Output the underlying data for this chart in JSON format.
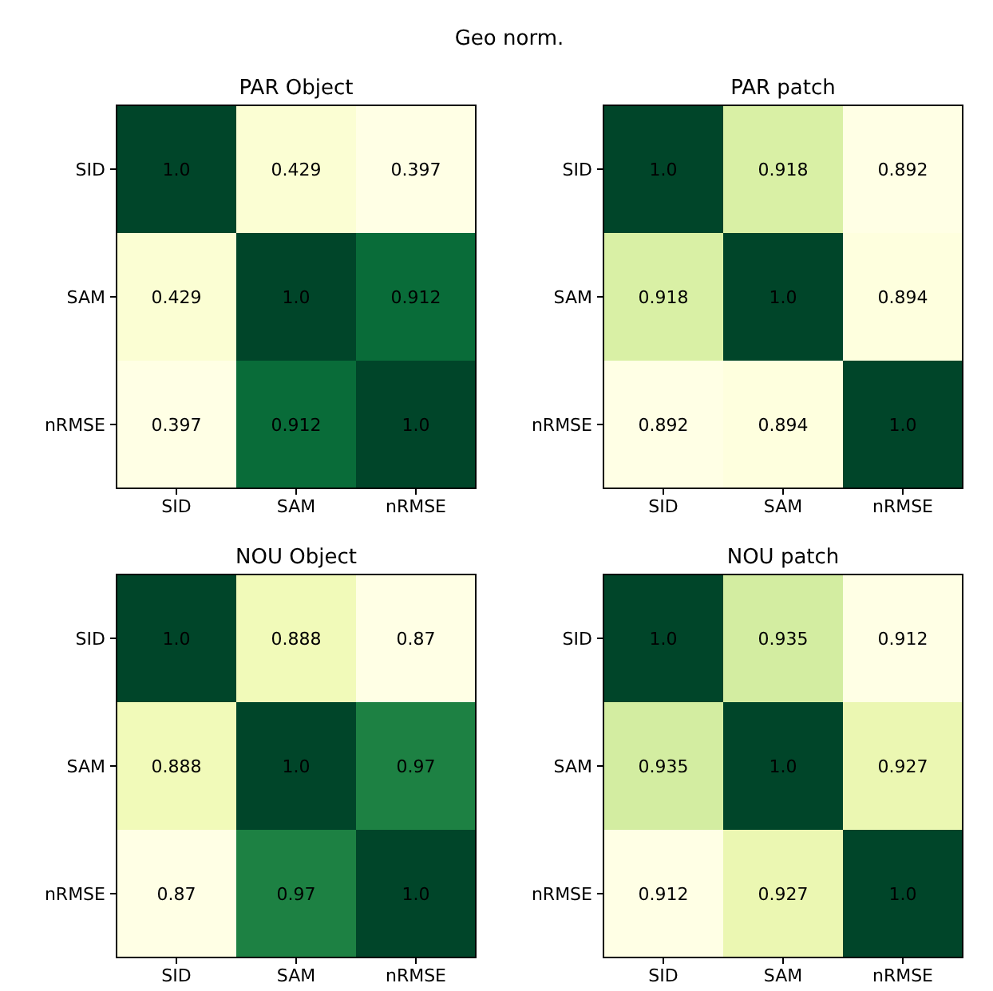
{
  "chart_data": [
    {
      "type": "heatmap",
      "title": "PAR Object",
      "subtitle": "Geo norm.",
      "categories": [
        "SID",
        "SAM",
        "nRMSE"
      ],
      "y_categories": [
        "SID",
        "SAM",
        "nRMSE"
      ],
      "cells": [
        [
          1.0,
          0.429,
          0.397
        ],
        [
          0.429,
          1.0,
          0.912
        ],
        [
          0.397,
          0.912,
          1.0
        ]
      ],
      "cell_labels": [
        [
          "1.0",
          "0.429",
          "0.397"
        ],
        [
          "0.429",
          "1.0",
          "0.912"
        ],
        [
          "0.397",
          "0.912",
          "1.0"
        ]
      ]
    },
    {
      "type": "heatmap",
      "title": "PAR patch",
      "categories": [
        "SID",
        "SAM",
        "nRMSE"
      ],
      "y_categories": [
        "SID",
        "SAM",
        "nRMSE"
      ],
      "cells": [
        [
          1.0,
          0.918,
          0.892
        ],
        [
          0.918,
          1.0,
          0.894
        ],
        [
          0.892,
          0.894,
          1.0
        ]
      ],
      "cell_labels": [
        [
          "1.0",
          "0.918",
          "0.892"
        ],
        [
          "0.918",
          "1.0",
          "0.894"
        ],
        [
          "0.892",
          "0.894",
          "1.0"
        ]
      ]
    },
    {
      "type": "heatmap",
      "title": "NOU Object",
      "categories": [
        "SID",
        "SAM",
        "nRMSE"
      ],
      "y_categories": [
        "SID",
        "SAM",
        "nRMSE"
      ],
      "cells": [
        [
          1.0,
          0.888,
          0.87
        ],
        [
          0.888,
          1.0,
          0.97
        ],
        [
          0.87,
          0.97,
          1.0
        ]
      ],
      "cell_labels": [
        [
          "1.0",
          "0.888",
          "0.87"
        ],
        [
          "0.888",
          "1.0",
          "0.97"
        ],
        [
          "0.87",
          "0.97",
          "1.0"
        ]
      ]
    },
    {
      "type": "heatmap",
      "title": "NOU patch",
      "categories": [
        "SID",
        "SAM",
        "nRMSE"
      ],
      "y_categories": [
        "SID",
        "SAM",
        "nRMSE"
      ],
      "cells": [
        [
          1.0,
          0.935,
          0.912
        ],
        [
          0.935,
          1.0,
          0.927
        ],
        [
          0.912,
          0.927,
          1.0
        ]
      ],
      "cell_labels": [
        [
          "1.0",
          "0.935",
          "0.912"
        ],
        [
          "0.935",
          "1.0",
          "0.927"
        ],
        [
          "0.912",
          "0.927",
          "1.0"
        ]
      ]
    }
  ]
}
